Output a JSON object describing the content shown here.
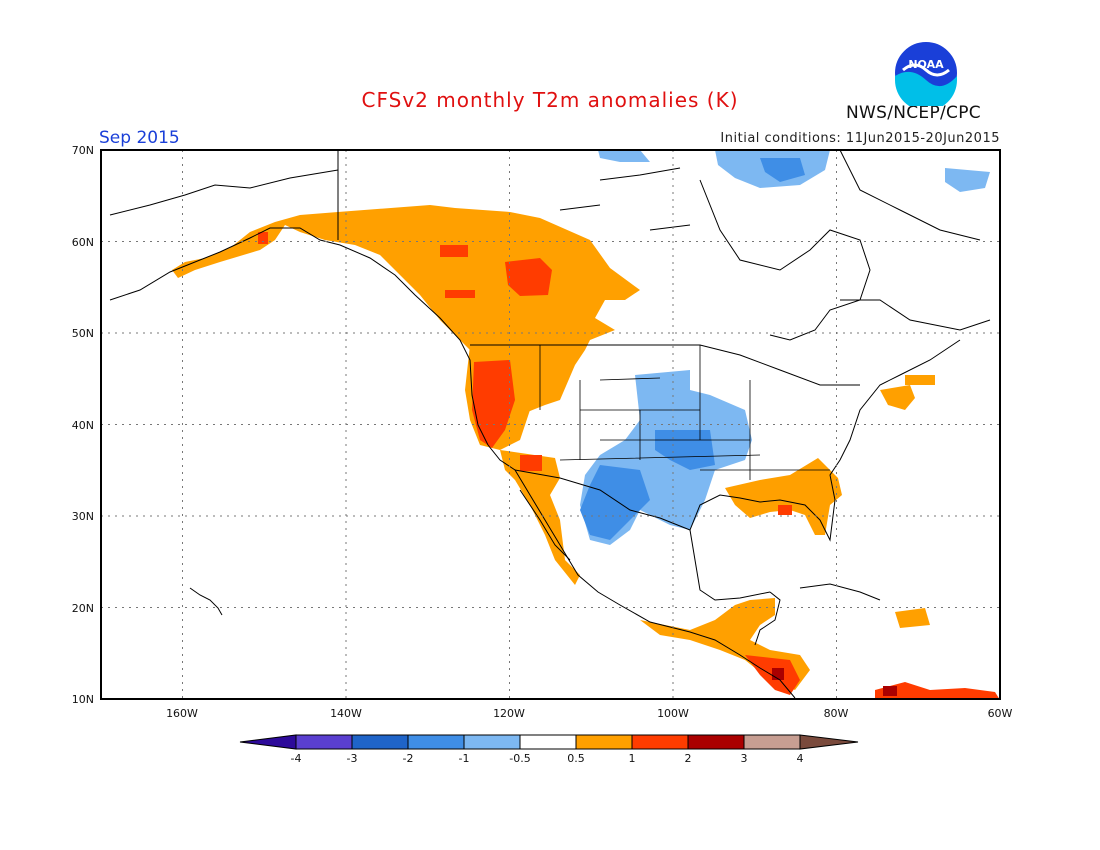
{
  "header": {
    "title": "CFSv2 monthly T2m anomalies (K)",
    "valid_month": "Sep 2015",
    "initial_conditions": "Initial conditions: 11Jun2015-20Jun2015",
    "agency": "NWS/NCEP/CPC",
    "logo_text": "NOAA"
  },
  "axes": {
    "lat_labels": [
      "70N",
      "60N",
      "50N",
      "40N",
      "30N",
      "20N",
      "10N"
    ],
    "lon_labels": [
      "160W",
      "140W",
      "120W",
      "100W",
      "80W",
      "60W"
    ]
  },
  "colorbar": {
    "labels": [
      "-4",
      "-3",
      "-2",
      "-1",
      "-0.5",
      "0.5",
      "1",
      "2",
      "3",
      "4"
    ],
    "colors": [
      "#2d0a9a",
      "#5a3fd0",
      "#1f64c8",
      "#3f8ee6",
      "#7db8f2",
      "#ffffff",
      "#ffa000",
      "#ff3c00",
      "#aa0000",
      "#c79e92",
      "#7a4a3c"
    ]
  },
  "chart_data": {
    "type": "heatmap",
    "title": "CFSv2 monthly T2m anomalies (K)",
    "period": "Sep 2015",
    "units": "K",
    "xlim_lon": [
      -171,
      -60
    ],
    "ylim_lat": [
      10,
      70
    ],
    "regions": [
      {
        "area": "Alaska / Yukon / British Columbia",
        "level": "0.5 to 1",
        "color": "#ffa000"
      },
      {
        "area": "Northern Alberta / NW Canada core",
        "level": "1 to 2",
        "color": "#ff3c00"
      },
      {
        "area": "Pacific Northwest coast / California",
        "level": "1 to 2",
        "color": "#ff3c00"
      },
      {
        "area": "Southwest US / Baja California",
        "level": "0.5 to 1",
        "color": "#ffa000"
      },
      {
        "area": "Southeast US (Gulf coast, Georgia, Florida)",
        "level": "0.5 to 1",
        "color": "#ffa000"
      },
      {
        "area": "Central Plains / Texas / Southern Rockies",
        "level": "-1 to -0.5",
        "color": "#7db8f2"
      },
      {
        "area": "West Texas / Northern Mexico",
        "level": "-2 to -1",
        "color": "#3f8ee6"
      },
      {
        "area": "Central America",
        "level": "0.5 to 2",
        "color": "#ffa000"
      },
      {
        "area": "Guatemala / Honduras coast",
        "level": "2 to 3",
        "color": "#aa0000"
      },
      {
        "area": "Northern South America coast",
        "level": "1 to 3",
        "color": "#ff3c00"
      },
      {
        "area": "Arctic islands / Baffin",
        "level": "-1 to -0.5",
        "color": "#7db8f2"
      },
      {
        "area": "Arctic Canada (Victoria Island)",
        "level": "-2 to -1",
        "color": "#3f8ee6"
      }
    ]
  }
}
